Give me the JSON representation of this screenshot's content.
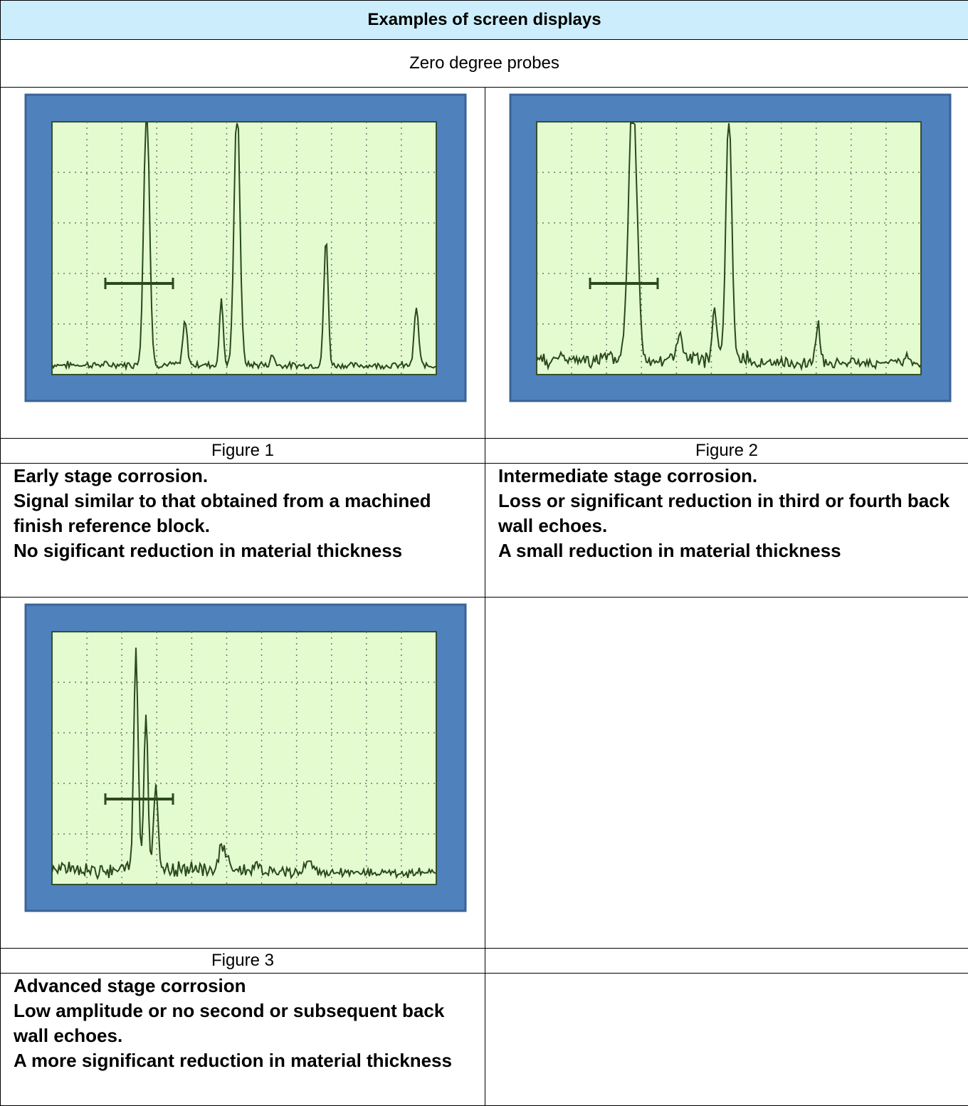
{
  "header": {
    "title": "Examples of screen displays",
    "subtitle": "Zero degree probes"
  },
  "figures": [
    {
      "caption": "Figure 1",
      "description": [
        "Early stage corrosion.",
        "Signal similar to that obtained from a machined finish reference block.",
        "No sigificant reduction in material thickness"
      ]
    },
    {
      "caption": "Figure 2",
      "description": [
        "Intermediate stage corrosion.",
        "Loss or significant reduction in third or fourth back wall echoes.",
        "A small reduction in material thickness"
      ]
    },
    {
      "caption": "Figure 3",
      "description": [
        "Advanced stage corrosion",
        "Low amplitude or no second or subsequent back wall echoes.",
        "A more significant reduction in material thickness"
      ]
    }
  ]
}
